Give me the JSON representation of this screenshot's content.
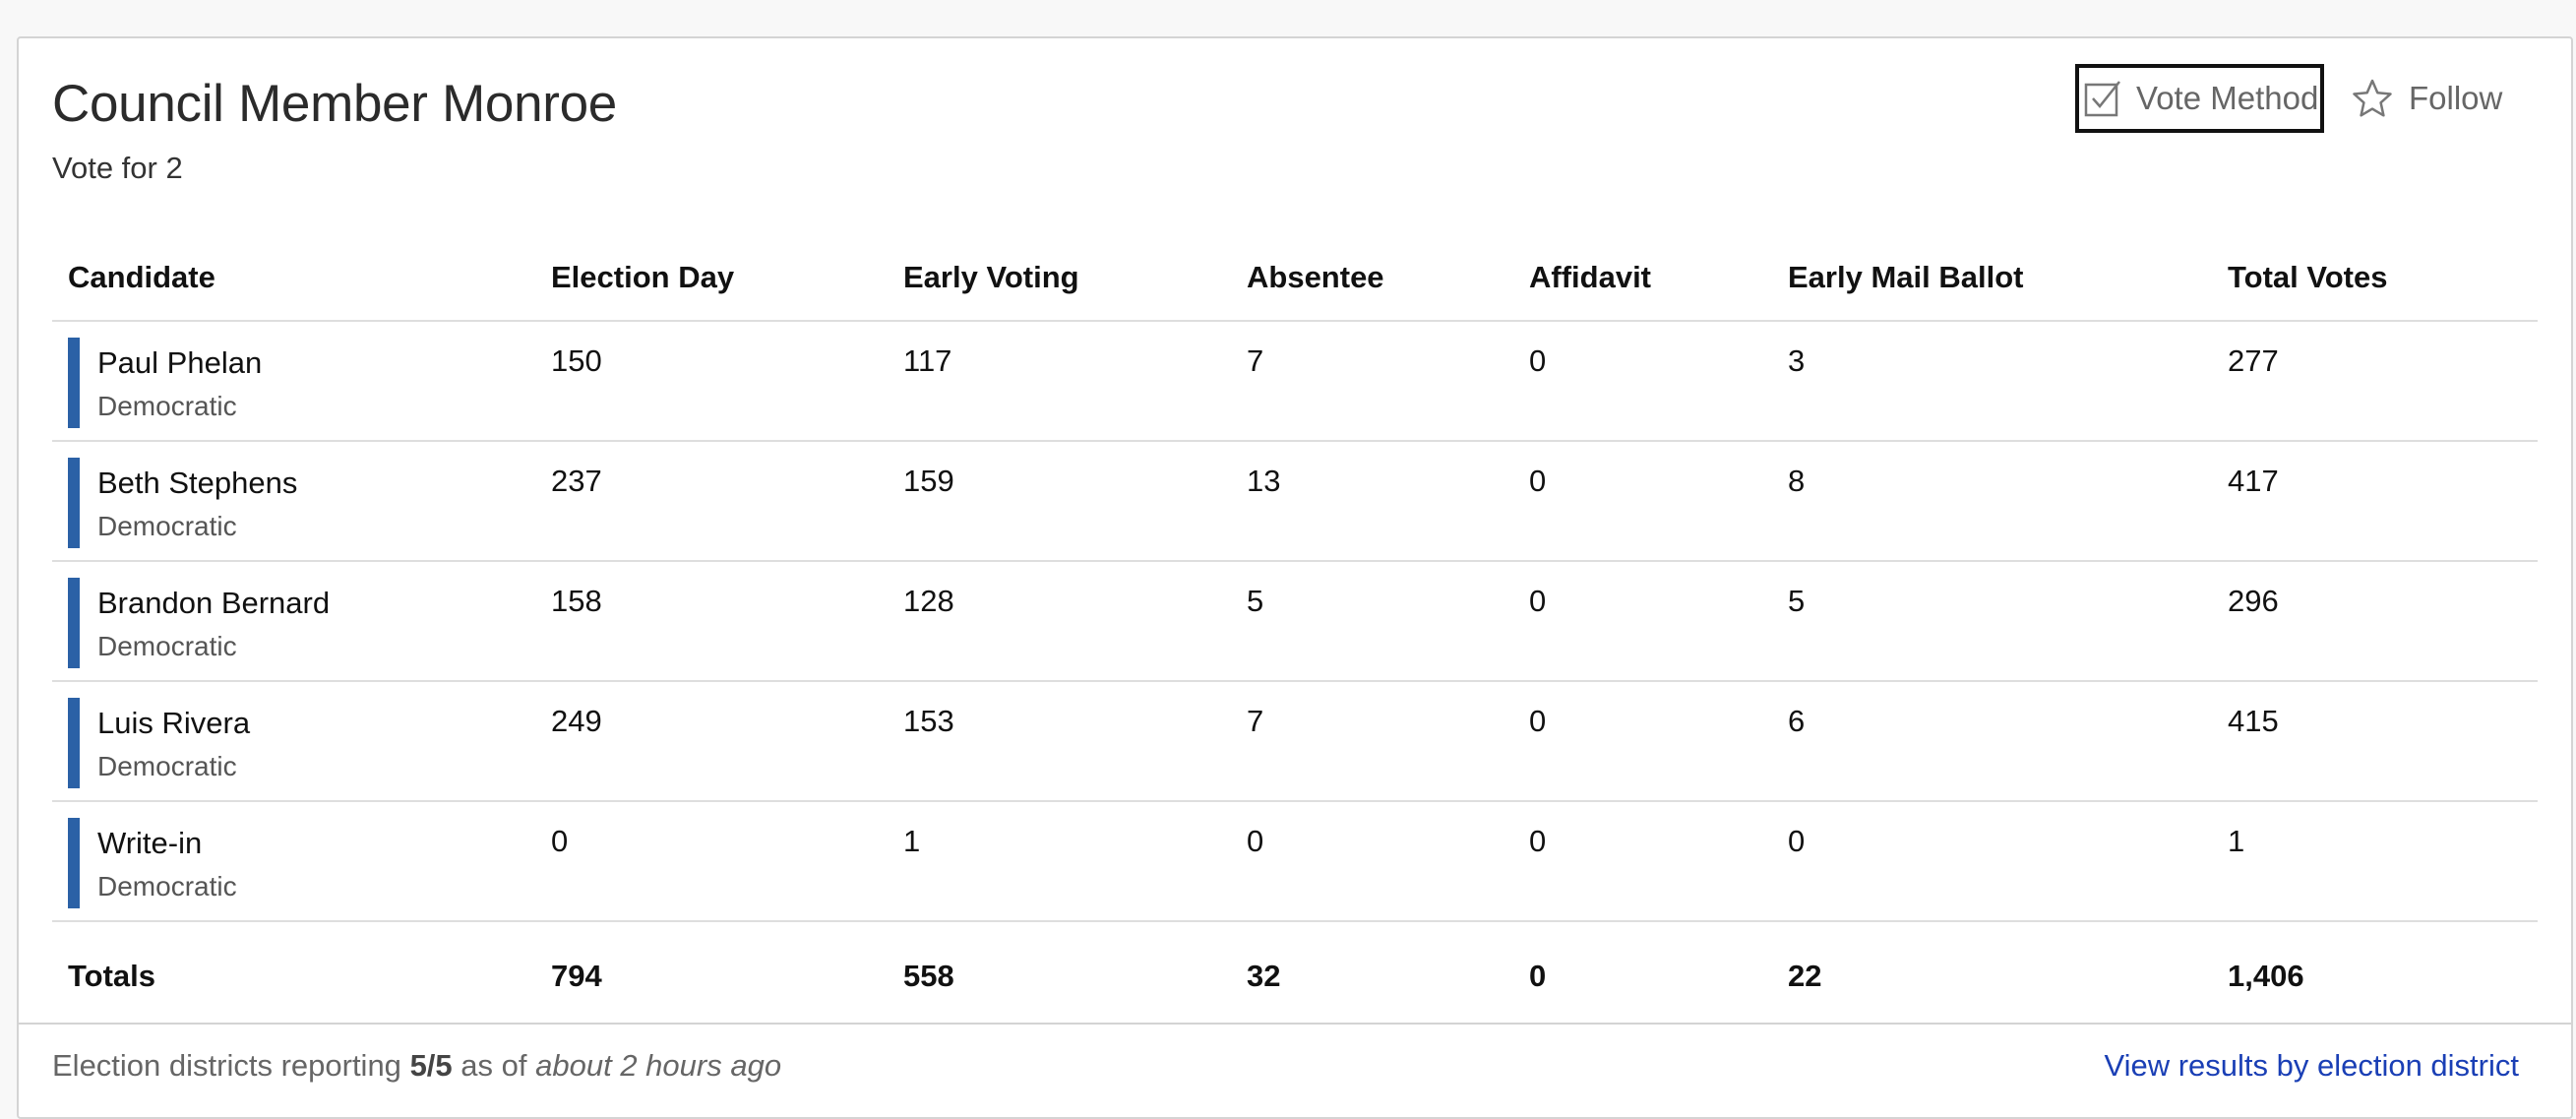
{
  "contest": {
    "title": "Council Member Monroe",
    "subtitle": "Vote for 2"
  },
  "actions": {
    "vote_method_label": "Vote Method",
    "vote_method_icon": "checkbox-icon",
    "follow_label": "Follow",
    "follow_icon": "star-icon"
  },
  "table": {
    "headers": {
      "candidate": "Candidate",
      "election_day": "Election Day",
      "early_voting": "Early Voting",
      "absentee": "Absentee",
      "affidavit": "Affidavit",
      "early_mail_ballot": "Early Mail Ballot",
      "total_votes": "Total Votes"
    },
    "party_color": "#2b61a6",
    "rows": [
      {
        "name": "Paul Phelan",
        "party": "Democratic",
        "election_day": "150",
        "early_voting": "117",
        "absentee": "7",
        "affidavit": "0",
        "early_mail_ballot": "3",
        "total": "277"
      },
      {
        "name": "Beth Stephens",
        "party": "Democratic",
        "election_day": "237",
        "early_voting": "159",
        "absentee": "13",
        "affidavit": "0",
        "early_mail_ballot": "8",
        "total": "417"
      },
      {
        "name": "Brandon Bernard",
        "party": "Democratic",
        "election_day": "158",
        "early_voting": "128",
        "absentee": "5",
        "affidavit": "0",
        "early_mail_ballot": "5",
        "total": "296"
      },
      {
        "name": "Luis Rivera",
        "party": "Democratic",
        "election_day": "249",
        "early_voting": "153",
        "absentee": "7",
        "affidavit": "0",
        "early_mail_ballot": "6",
        "total": "415"
      },
      {
        "name": "Write-in",
        "party": "Democratic",
        "election_day": "0",
        "early_voting": "1",
        "absentee": "0",
        "affidavit": "0",
        "early_mail_ballot": "0",
        "total": "1"
      }
    ],
    "totals": {
      "label": "Totals",
      "election_day": "794",
      "early_voting": "558",
      "absentee": "32",
      "affidavit": "0",
      "early_mail_ballot": "22",
      "total": "1,406"
    }
  },
  "footer": {
    "reporting_prefix": "Election districts reporting",
    "reporting_value": "5/5",
    "as_of": "as of",
    "updated": "about 2 hours ago",
    "link_label": "View results by election district"
  }
}
